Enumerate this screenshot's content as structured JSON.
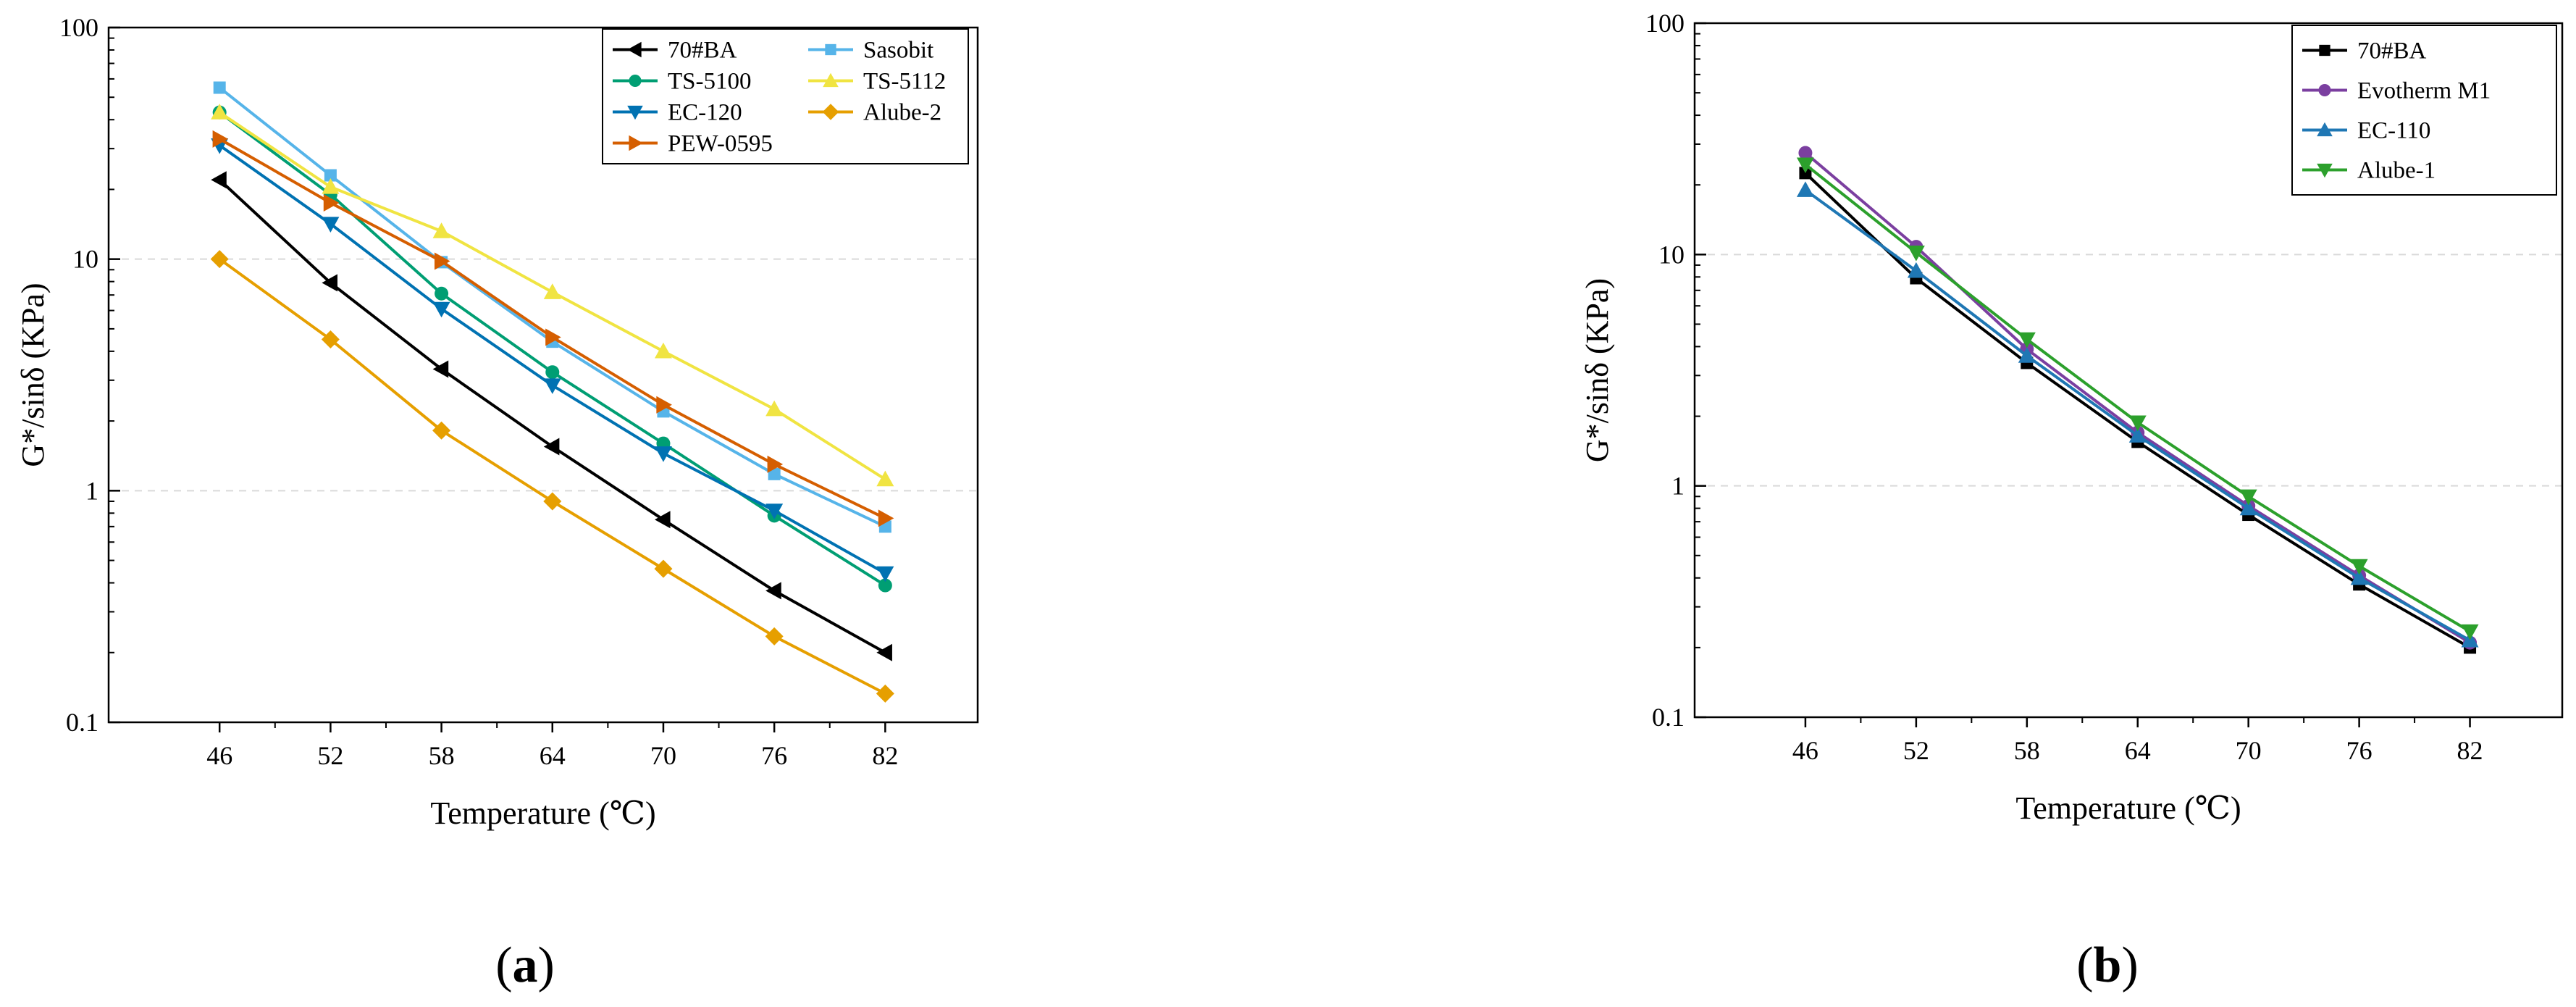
{
  "chart_data": [
    {
      "type": "line",
      "panel_label_open": "(",
      "panel_label_letter": "a",
      "panel_label_close": ")",
      "xlabel": "Temperature (℃)",
      "ylabel": "G*/sinδ (KPa)",
      "yscale": "log",
      "ylim": [
        0.1,
        100
      ],
      "yticks": [
        0.1,
        1,
        10,
        100
      ],
      "ytick_labels": [
        "0.1",
        "1",
        "10",
        "100"
      ],
      "x": [
        46,
        52,
        58,
        64,
        70,
        76,
        82
      ],
      "xtick_labels": [
        "46",
        "52",
        "58",
        "64",
        "70",
        "76",
        "82"
      ],
      "xlim": [
        40,
        87
      ],
      "grid": "horizontal dashed at major y ticks",
      "legend_position": "top-right",
      "series": [
        {
          "name": "70#BA",
          "color": "#000000",
          "marker": "triangle-left",
          "values": [
            22,
            7.9,
            3.35,
            1.55,
            0.75,
            0.37,
            0.2
          ]
        },
        {
          "name": "Sasobit",
          "color": "#56B4E9",
          "marker": "square",
          "values": [
            55,
            23,
            9.7,
            4.4,
            2.2,
            1.18,
            0.7
          ]
        },
        {
          "name": "TS-5100",
          "color": "#009E73",
          "marker": "circle",
          "values": [
            43,
            19,
            7.1,
            3.25,
            1.6,
            0.78,
            0.39
          ]
        },
        {
          "name": "TS-5112",
          "color": "#F0E442",
          "marker": "triangle-up",
          "values": [
            43,
            20.5,
            13.2,
            7.2,
            4.0,
            2.25,
            1.12
          ]
        },
        {
          "name": "EC-120",
          "color": "#0072B2",
          "marker": "triangle-down",
          "values": [
            31,
            14.2,
            6.1,
            2.85,
            1.45,
            0.82,
            0.44
          ]
        },
        {
          "name": "Alube-2",
          "color": "#E69F00",
          "marker": "diamond",
          "values": [
            10,
            4.5,
            1.82,
            0.9,
            0.46,
            0.235,
            0.133
          ]
        },
        {
          "name": "PEW-0595",
          "color": "#D55E00",
          "marker": "triangle-right",
          "values": [
            33,
            17.5,
            9.8,
            4.6,
            2.35,
            1.3,
            0.76
          ]
        }
      ]
    },
    {
      "type": "line",
      "panel_label_open": "(",
      "panel_label_letter": "b",
      "panel_label_close": ")",
      "xlabel": "Temperature (℃)",
      "ylabel": "G*/sinδ (KPa)",
      "yscale": "log",
      "ylim": [
        0.1,
        100
      ],
      "yticks": [
        0.1,
        1,
        10,
        100
      ],
      "ytick_labels": [
        "0.1",
        "1",
        "10",
        "100"
      ],
      "x": [
        46,
        52,
        58,
        64,
        70,
        76,
        82
      ],
      "xtick_labels": [
        "46",
        "52",
        "58",
        "64",
        "70",
        "76",
        "82"
      ],
      "xlim": [
        40,
        87
      ],
      "grid": "horizontal dashed at major y ticks",
      "legend_position": "top-right",
      "series": [
        {
          "name": "70#BA",
          "color": "#000000",
          "marker": "square",
          "values": [
            22.5,
            7.9,
            3.4,
            1.55,
            0.75,
            0.375,
            0.2
          ]
        },
        {
          "name": "Evotherm M1",
          "color": "#7B3FA0",
          "marker": "circle",
          "values": [
            27.5,
            10.8,
            3.9,
            1.7,
            0.82,
            0.41,
            0.21
          ]
        },
        {
          "name": "EC-110",
          "color": "#1F77B4",
          "marker": "triangle-up",
          "values": [
            19,
            8.5,
            3.65,
            1.65,
            0.8,
            0.4,
            0.215
          ]
        },
        {
          "name": "Alube-1",
          "color": "#2CA02C",
          "marker": "triangle-down",
          "values": [
            24.5,
            10.2,
            4.3,
            1.88,
            0.9,
            0.45,
            0.235
          ]
        }
      ]
    }
  ]
}
